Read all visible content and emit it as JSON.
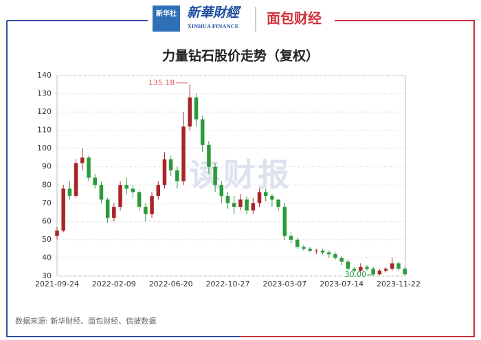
{
  "header": {
    "logo": "新华社",
    "brand": "新華財經",
    "brand_en": "XINHUA FINANCE",
    "partner": "面包财经"
  },
  "chart_data": {
    "type": "candlestick",
    "title": "力量钻石股价走势（复权）",
    "categories": [
      "2021-09-24",
      null,
      null,
      null,
      null,
      null,
      null,
      null,
      null,
      "2022-02-09",
      null,
      null,
      null,
      null,
      null,
      null,
      null,
      null,
      "2022-06-20",
      null,
      null,
      null,
      null,
      null,
      null,
      null,
      null,
      "2022-10-27",
      null,
      null,
      null,
      null,
      null,
      null,
      null,
      null,
      "2023-03-07",
      null,
      null,
      null,
      null,
      null,
      null,
      null,
      null,
      "2023-07-14",
      null,
      null,
      null,
      null,
      null,
      null,
      null,
      null,
      "2023-11-22",
      null
    ],
    "open": [
      52,
      55,
      78,
      74,
      92,
      95,
      84,
      80,
      72,
      62,
      68,
      80,
      78,
      76,
      68,
      64,
      74,
      80,
      94,
      88,
      82,
      112,
      128,
      116,
      102,
      90,
      80,
      74,
      70,
      68,
      72,
      66,
      70,
      76,
      74,
      72,
      68,
      52,
      50,
      46,
      45,
      44,
      44,
      43,
      42,
      40,
      38,
      34,
      33,
      35,
      34,
      31,
      33,
      34,
      37,
      34
    ],
    "high": [
      57,
      80,
      82,
      94,
      100,
      96,
      86,
      82,
      73,
      70,
      82,
      84,
      80,
      77,
      70,
      76,
      82,
      98,
      96,
      90,
      120,
      135.18,
      130,
      118,
      104,
      92,
      82,
      76,
      74,
      75,
      74,
      73,
      78,
      78,
      75,
      72,
      70,
      54,
      51,
      47,
      46,
      45,
      45,
      44,
      43,
      41,
      39,
      35,
      37,
      36,
      35,
      34,
      35,
      40,
      38,
      35
    ],
    "low": [
      50,
      54,
      72,
      73,
      88,
      82,
      78,
      70,
      59,
      60,
      66,
      75,
      73,
      66,
      60,
      62,
      72,
      78,
      85,
      78,
      80,
      110,
      112,
      98,
      86,
      76,
      70,
      67,
      64,
      66,
      64,
      64,
      68,
      71,
      68,
      66,
      50,
      48,
      45,
      44,
      43,
      42,
      42,
      40,
      39,
      36,
      33,
      32,
      32,
      33,
      30,
      30.5,
      32,
      33,
      33,
      30.5
    ],
    "close": [
      55,
      78,
      74,
      92,
      95,
      84,
      80,
      72,
      62,
      68,
      80,
      78,
      76,
      68,
      64,
      74,
      80,
      94,
      88,
      82,
      112,
      128,
      116,
      102,
      90,
      80,
      74,
      70,
      68,
      72,
      66,
      70,
      76,
      74,
      72,
      68,
      52,
      50,
      46,
      45,
      44,
      44,
      43,
      42,
      40,
      38,
      34,
      33,
      35,
      34,
      31,
      33,
      34,
      37,
      34,
      31
    ],
    "up_color": "#a8252a",
    "down_color": "#2b9a3a",
    "ylim": [
      30,
      140
    ],
    "yticks": [
      30,
      40,
      50,
      60,
      70,
      80,
      90,
      100,
      110,
      120,
      130,
      140
    ],
    "grid": true,
    "max_label": "135.18",
    "min_label": "30.00",
    "watermark": "读财报",
    "source": "数据来源: 新华财经、面包财经、信披数据"
  }
}
